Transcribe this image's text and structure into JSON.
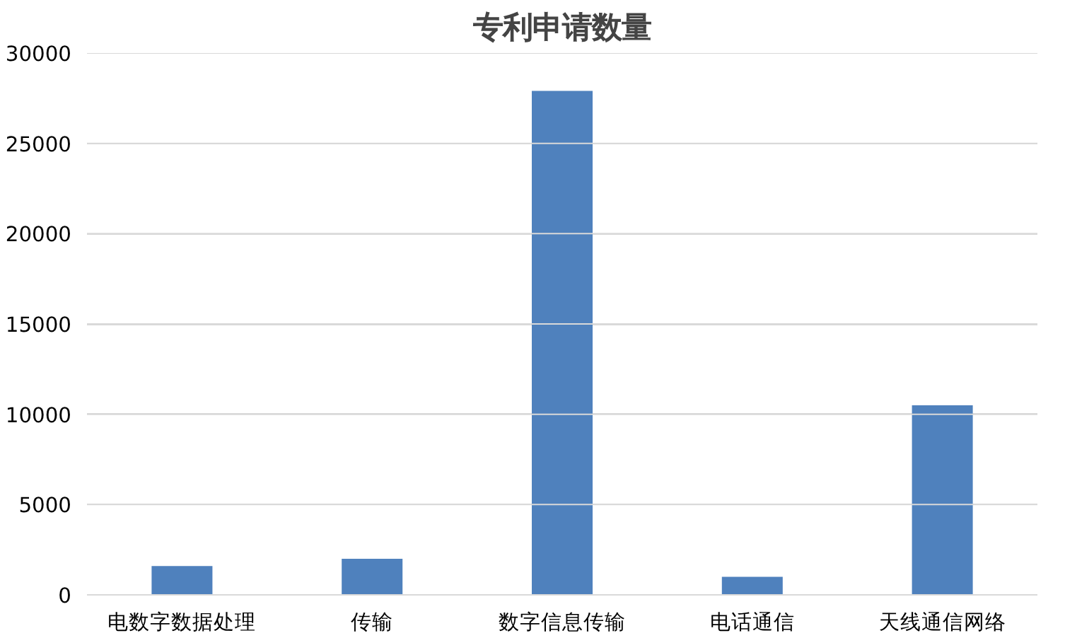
{
  "chart_data": {
    "type": "bar",
    "title": "专利申请数量",
    "categories": [
      "电数字数据处理",
      "传输",
      "数字信息传输",
      "电话通信",
      "天线通信网络"
    ],
    "values": [
      1600,
      2000,
      27900,
      1000,
      10500
    ],
    "color": "#4f81bd",
    "ylim": [
      0,
      30000
    ],
    "yticks": [
      0,
      5000,
      10000,
      15000,
      20000,
      25000,
      30000
    ],
    "grid": "y"
  }
}
